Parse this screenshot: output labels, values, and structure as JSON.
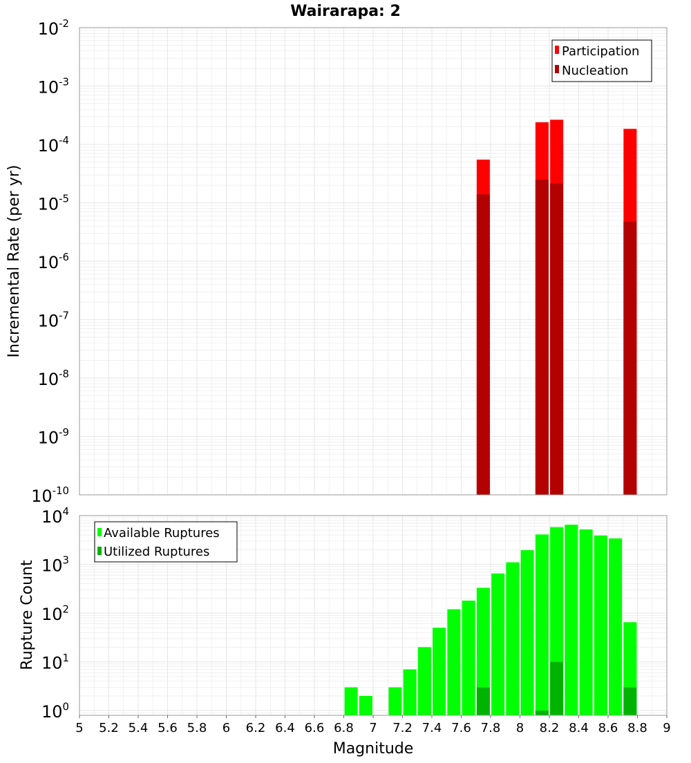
{
  "colors": {
    "participation": "#ff0000",
    "nucleation": "#b30000",
    "available": "#00ff00",
    "utilized": "#00b300",
    "grid": "#e6e6e6",
    "plot_border": "#999999"
  },
  "chart_data": [
    {
      "type": "bar",
      "title": "Wairarapa: 2",
      "xlabel": "",
      "ylabel": "Incremental Rate (per yr)",
      "x_range": [
        5,
        9
      ],
      "y_scale": "log",
      "ylim": [
        1e-10,
        0.01
      ],
      "y_ticks": [
        {
          "base": "10",
          "exp": "-2",
          "value": 0.01
        },
        {
          "base": "10",
          "exp": "-3",
          "value": 0.001
        },
        {
          "base": "10",
          "exp": "-4",
          "value": 0.0001
        },
        {
          "base": "10",
          "exp": "-5",
          "value": 1e-05
        },
        {
          "base": "10",
          "exp": "-6",
          "value": 1e-06
        },
        {
          "base": "10",
          "exp": "-7",
          "value": 1e-07
        },
        {
          "base": "10",
          "exp": "-8",
          "value": 1e-08
        },
        {
          "base": "10",
          "exp": "-9",
          "value": 1e-09
        },
        {
          "base": "10",
          "exp": "-10",
          "value": 1e-10
        }
      ],
      "grid": true,
      "legend_position": "top-right",
      "series": [
        {
          "name": "Participation",
          "color": "#ff0000",
          "points": [
            {
              "x": 7.75,
              "y": 5.5e-05
            },
            {
              "x": 8.15,
              "y": 0.00024
            },
            {
              "x": 8.25,
              "y": 0.000265
            },
            {
              "x": 8.75,
              "y": 0.000185
            }
          ]
        },
        {
          "name": "Nucleation",
          "color": "#b30000",
          "points": [
            {
              "x": 7.75,
              "y": 1.4e-05
            },
            {
              "x": 8.15,
              "y": 2.5e-05
            },
            {
              "x": 8.25,
              "y": 2.15e-05
            },
            {
              "x": 8.75,
              "y": 4.8e-06
            }
          ]
        }
      ]
    },
    {
      "type": "bar",
      "title": "",
      "xlabel": "Magnitude",
      "ylabel": "Rupture Count",
      "x_range": [
        5,
        9
      ],
      "x_ticks": [
        "5",
        "5.2",
        "5.4",
        "5.6",
        "5.8",
        "6",
        "6.2",
        "6.4",
        "6.6",
        "6.8",
        "7",
        "7.2",
        "7.4",
        "7.6",
        "7.8",
        "8",
        "8.2",
        "8.4",
        "8.6",
        "8.8",
        "9"
      ],
      "y_scale": "log",
      "ylim": [
        0.8,
        10000
      ],
      "y_ticks": [
        {
          "base": "10",
          "exp": "4",
          "value": 10000
        },
        {
          "base": "10",
          "exp": "3",
          "value": 1000
        },
        {
          "base": "10",
          "exp": "2",
          "value": 100
        },
        {
          "base": "10",
          "exp": "1",
          "value": 10
        },
        {
          "base": "10",
          "exp": "0",
          "value": 1
        }
      ],
      "grid": true,
      "legend_position": "top-left",
      "series": [
        {
          "name": "Available Ruptures",
          "color": "#00ff00",
          "points": [
            {
              "x": 6.85,
              "y": 3
            },
            {
              "x": 6.95,
              "y": 2
            },
            {
              "x": 7.15,
              "y": 3
            },
            {
              "x": 7.25,
              "y": 7
            },
            {
              "x": 7.35,
              "y": 20
            },
            {
              "x": 7.45,
              "y": 50
            },
            {
              "x": 7.55,
              "y": 120
            },
            {
              "x": 7.65,
              "y": 180
            },
            {
              "x": 7.75,
              "y": 330
            },
            {
              "x": 7.85,
              "y": 650
            },
            {
              "x": 7.95,
              "y": 1100
            },
            {
              "x": 8.05,
              "y": 1950
            },
            {
              "x": 8.15,
              "y": 4100
            },
            {
              "x": 8.25,
              "y": 5800
            },
            {
              "x": 8.35,
              "y": 6500
            },
            {
              "x": 8.45,
              "y": 5200
            },
            {
              "x": 8.55,
              "y": 3900
            },
            {
              "x": 8.65,
              "y": 3400
            },
            {
              "x": 8.75,
              "y": 65
            }
          ]
        },
        {
          "name": "Utilized Ruptures",
          "color": "#00b300",
          "points": [
            {
              "x": 7.75,
              "y": 3
            },
            {
              "x": 8.15,
              "y": 1
            },
            {
              "x": 8.25,
              "y": 10
            },
            {
              "x": 8.75,
              "y": 3
            }
          ]
        }
      ]
    }
  ]
}
